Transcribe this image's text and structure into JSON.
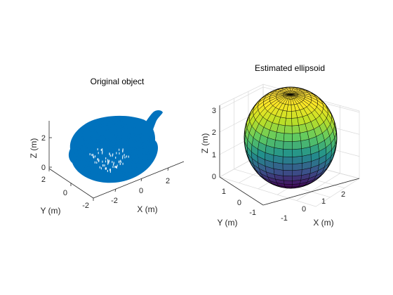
{
  "colors": {
    "pointcloud": "#0072BD",
    "axis": "#262626",
    "grid": "#d9d9d9",
    "mesh_edge": "#000000",
    "colormap": [
      "#440154",
      "#3b528b",
      "#21918c",
      "#5ec962",
      "#bddf26",
      "#fde725",
      "#f9d846"
    ]
  },
  "chart_data": [
    {
      "type": "scatter3d",
      "title": "Original object",
      "xlabel": "X (m)",
      "ylabel": "Y (m)",
      "zlabel": "Z (m)",
      "x_ticks": [
        "-2",
        "0",
        "2"
      ],
      "y_ticks": [
        "2",
        "0",
        "-2"
      ],
      "z_ticks": [
        "0",
        "2"
      ],
      "xlim": [
        -3,
        3.5
      ],
      "ylim": [
        -2,
        2
      ],
      "zlim": [
        0,
        3
      ],
      "grid": false,
      "object": "teapot point cloud"
    },
    {
      "type": "surface3d",
      "title": "Estimated ellipsoid",
      "xlabel": "X (m)",
      "ylabel": "Y (m)",
      "zlabel": "Z (m)",
      "x_ticks": [
        "-1",
        "0",
        "1",
        "2"
      ],
      "y_ticks": [
        "1",
        "0",
        "-1"
      ],
      "z_ticks": [
        "0",
        "1",
        "2",
        "3"
      ],
      "xlim": [
        -1.5,
        2.5
      ],
      "ylim": [
        -1.5,
        1.5
      ],
      "zlim": [
        0,
        3.2
      ],
      "grid": true,
      "colormap": "parula",
      "object": "ellipsoid surface mesh"
    }
  ]
}
